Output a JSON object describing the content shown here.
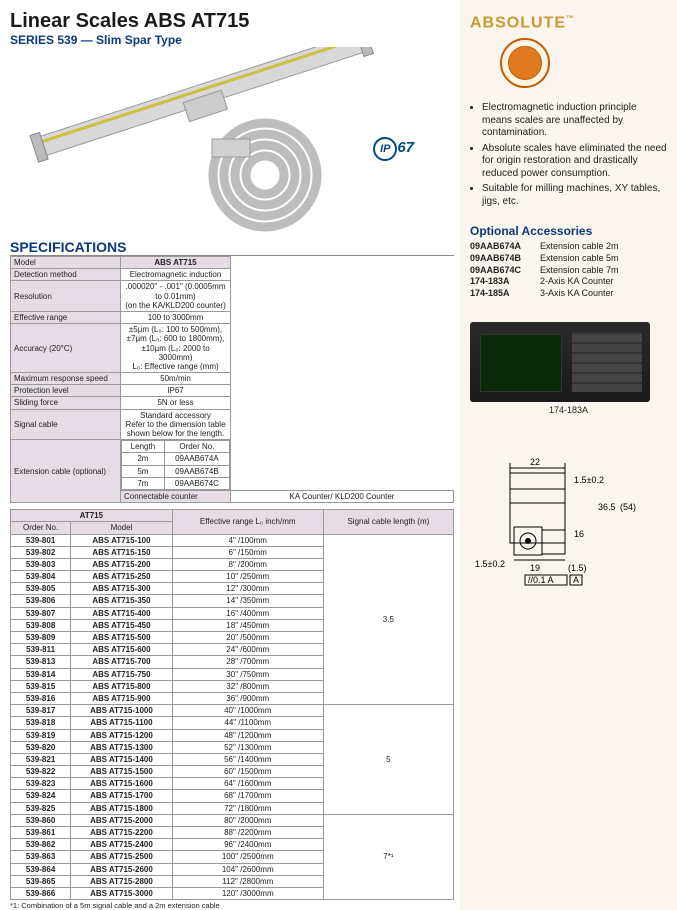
{
  "header": {
    "title": "Linear Scales ABS AT715",
    "subtitle": "SERIES 539 — Slim Spar Type",
    "ip67_label": "67",
    "ip67_prefix": "IP"
  },
  "brand": {
    "name": "ABSOLUTE",
    "tm": "™"
  },
  "bullets": [
    "Electromagnetic induction principle means scales are unaffected by contamination.",
    "Absolute scales have eliminated the need for origin restoration and drastically reduced power consumption.",
    "Suitable for milling machines, XY tables, jigs, etc."
  ],
  "spec_heading": "SPECIFICATIONS",
  "spec_model_label": "Model",
  "spec_model_value": "ABS AT715",
  "specs": [
    {
      "label": "Detection method",
      "value": "Electromagnetic induction"
    },
    {
      "label": "Resolution",
      "value": ".000020\" - .001\" (0.0005mm to 0.01mm)\n(on the KA/KLD200 counter)"
    },
    {
      "label": "Effective range",
      "value": "100 to 3000mm"
    },
    {
      "label": "Accuracy (20°C)",
      "value": "±5µm (L₀: 100 to 500mm), ±7µm (L₀: 600 to 1800mm), ±10µm (L₀: 2000 to 3000mm)\nL₀: Effective range (mm)"
    },
    {
      "label": "Maximum response speed",
      "value": "50m/min"
    },
    {
      "label": "Protection level",
      "value": "IP67"
    },
    {
      "label": "Sliding force",
      "value": "5N or less"
    },
    {
      "label": "Signal cable",
      "value": "Standard accessory\nRefer to the dimension table shown below for the length."
    }
  ],
  "ext_cable_label": "Extension cable (optional)",
  "ext_cable_header": {
    "c1": "Length",
    "c2": "Order No."
  },
  "ext_cable_rows": [
    {
      "len": "2m",
      "order": "09AAB674A"
    },
    {
      "len": "5m",
      "order": "09AAB674B"
    },
    {
      "len": "7m",
      "order": "09AAB674C"
    }
  ],
  "connectable_label": "Connectable counter",
  "connectable_value": "KA Counter/ KLD200 Counter",
  "model_table_title": "AT715",
  "model_table_headers": {
    "order": "Order No.",
    "model": "Model",
    "range": "Effective range\nL₀ inch/mm",
    "cable": "Signal cable length\n(m)"
  },
  "model_rows_g1": [
    {
      "o": "539-801",
      "m": "ABS AT715-100",
      "r": "4\" /100mm"
    },
    {
      "o": "539-802",
      "m": "ABS AT715-150",
      "r": "6\" /150mm"
    },
    {
      "o": "539-803",
      "m": "ABS AT715-200",
      "r": "8\" /200mm"
    },
    {
      "o": "539-804",
      "m": "ABS AT715-250",
      "r": "10\" /250mm"
    },
    {
      "o": "539-805",
      "m": "ABS AT715-300",
      "r": "12\" /300mm"
    },
    {
      "o": "539-806",
      "m": "ABS AT715-350",
      "r": "14\" /350mm"
    },
    {
      "o": "539-807",
      "m": "ABS AT715-400",
      "r": "16\" /400mm"
    },
    {
      "o": "539-808",
      "m": "ABS AT715-450",
      "r": "18\" /450mm"
    },
    {
      "o": "539-809",
      "m": "ABS AT715-500",
      "r": "20\" /500mm"
    },
    {
      "o": "539-811",
      "m": "ABS AT715-600",
      "r": "24\" /600mm"
    },
    {
      "o": "539-813",
      "m": "ABS AT715-700",
      "r": "28\" /700mm"
    },
    {
      "o": "539-814",
      "m": "ABS AT715-750",
      "r": "30\" /750mm"
    },
    {
      "o": "539-815",
      "m": "ABS AT715-800",
      "r": "32\" /800mm"
    },
    {
      "o": "539-816",
      "m": "ABS AT715-900",
      "r": "36\" /900mm"
    }
  ],
  "cable_g1": "3.5",
  "model_rows_g2": [
    {
      "o": "539-817",
      "m": "ABS AT715-1000",
      "r": "40\" /1000mm"
    },
    {
      "o": "539-818",
      "m": "ABS AT715-1100",
      "r": "44\" /1100mm"
    },
    {
      "o": "539-819",
      "m": "ABS AT715-1200",
      "r": "48\" /1200mm"
    },
    {
      "o": "539-820",
      "m": "ABS AT715-1300",
      "r": "52\" /1300mm"
    },
    {
      "o": "539-821",
      "m": "ABS AT715-1400",
      "r": "56\" /1400mm"
    },
    {
      "o": "539-822",
      "m": "ABS AT715-1500",
      "r": "60\" /1500mm"
    },
    {
      "o": "539-823",
      "m": "ABS AT715-1600",
      "r": "64\" /1600mm"
    },
    {
      "o": "539-824",
      "m": "ABS AT715-1700",
      "r": "68\" /1700mm"
    },
    {
      "o": "539-825",
      "m": "ABS AT715-1800",
      "r": "72\" /1800mm"
    }
  ],
  "cable_g2": "5",
  "model_rows_g3": [
    {
      "o": "539-860",
      "m": "ABS AT715-2000",
      "r": "80\" /2000mm"
    },
    {
      "o": "539-861",
      "m": "ABS AT715-2200",
      "r": "88\" /2200mm"
    },
    {
      "o": "539-862",
      "m": "ABS AT715-2400",
      "r": "96\" /2400mm"
    },
    {
      "o": "539-863",
      "m": "ABS AT715-2500",
      "r": "100\" /2500mm"
    },
    {
      "o": "539-864",
      "m": "ABS AT715-2600",
      "r": "104\" /2600mm"
    },
    {
      "o": "539-865",
      "m": "ABS AT715-2800",
      "r": "112\" /2800mm"
    },
    {
      "o": "539-866",
      "m": "ABS AT715-3000",
      "r": "120\" /3000mm"
    }
  ],
  "cable_g3": "7*¹",
  "footnote": "*1: Combination of a 5m signal cable and a 2m extension cable",
  "optional_heading": "Optional Accessories",
  "optional_rows": [
    {
      "code": "09AAB674A",
      "desc": "Extension cable 2m"
    },
    {
      "code": "09AAB674B",
      "desc": "Extension cable 5m"
    },
    {
      "code": "09AAB674C",
      "desc": "Extension cable 7m"
    },
    {
      "code": "174-183A",
      "desc": "2-Axis KA Counter"
    },
    {
      "code": "174-185A",
      "desc": "3-Axis KA Counter"
    }
  ],
  "counter_caption": "174-183A",
  "dims": {
    "w_top": "22",
    "h_right_top": "1.5±0.2",
    "h_right": "36.5",
    "h_paren": "(54)",
    "h_bot": "16",
    "w_bot_left": "1.5±0.2",
    "w_bot": "19",
    "w_paren": "(1.5)",
    "tol": "//0.1 A",
    "datum": "A"
  },
  "colors": {
    "heading_blue": "#0a3a7a",
    "header_bg": "#e6dce6",
    "right_bg": "#faf5ee",
    "gold": "#c89a30"
  }
}
